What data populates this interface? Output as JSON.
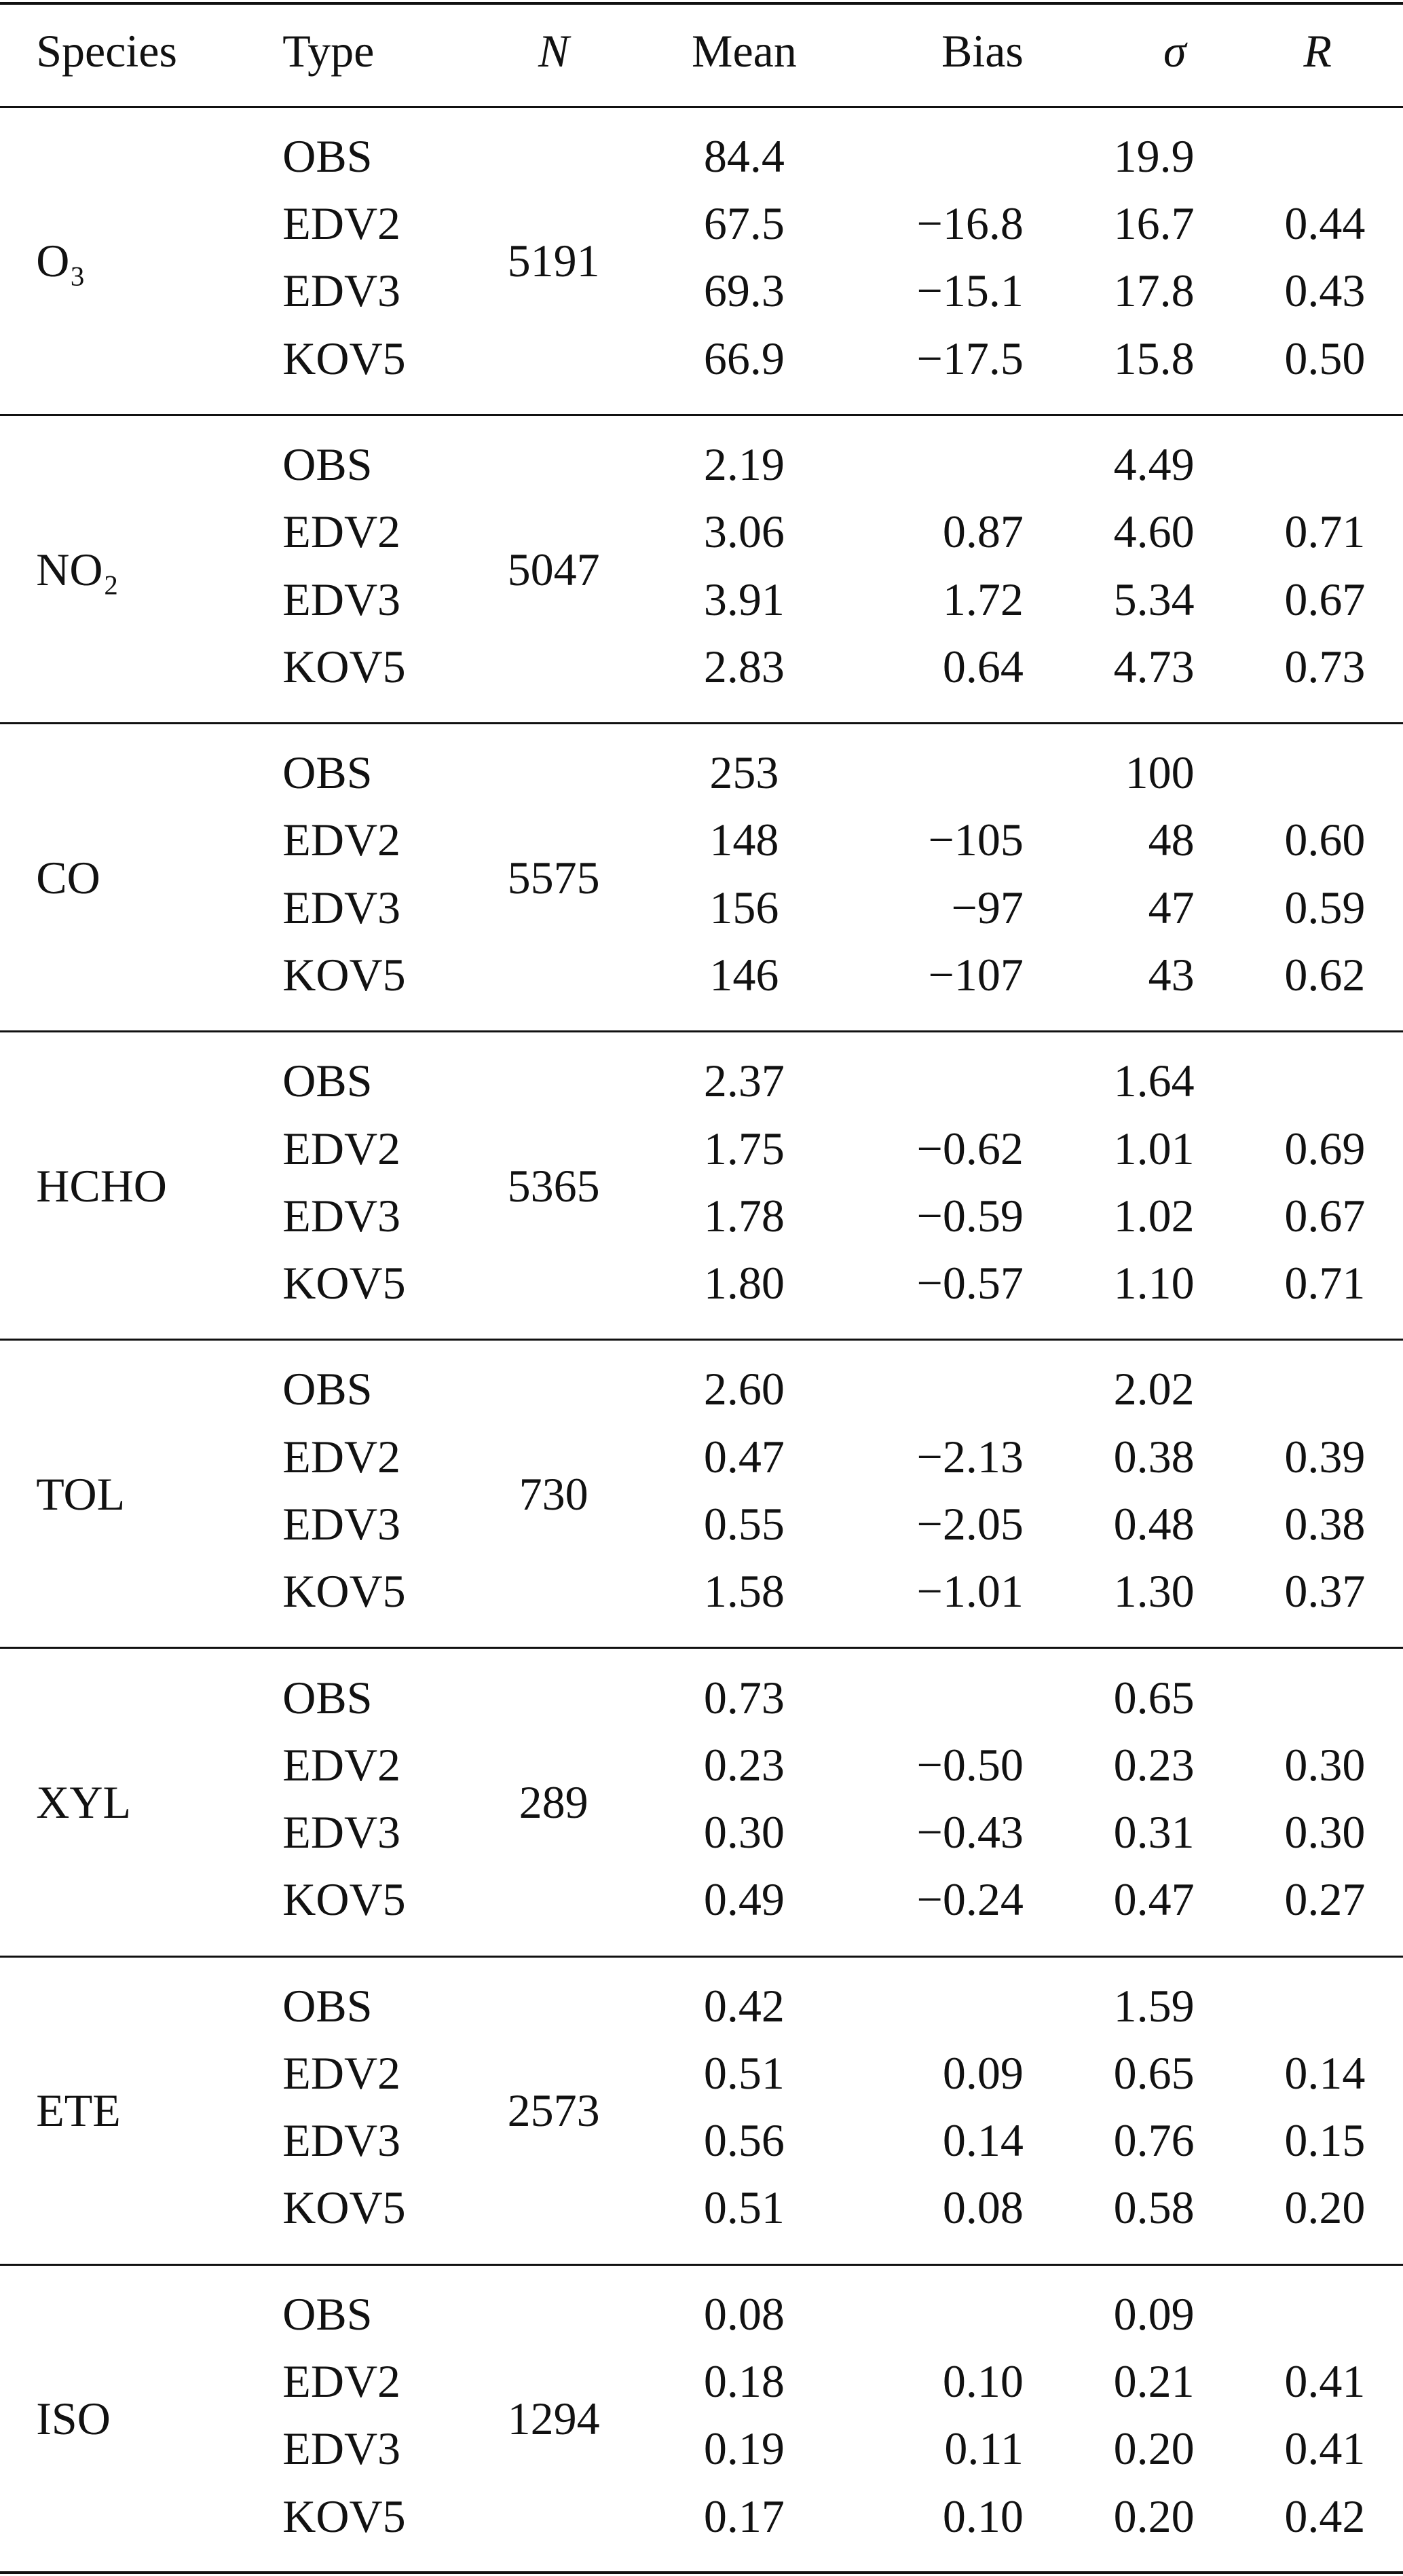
{
  "table": {
    "header": [
      "Species",
      "Type",
      "N",
      "Mean",
      "Bias",
      "σ",
      "R"
    ],
    "groups": [
      {
        "species": "O₃",
        "n": "5191",
        "rows": [
          [
            "OBS",
            "84.4",
            null,
            "19.9",
            null
          ],
          [
            "EDV2",
            "67.5",
            "−16.8",
            "16.7",
            "0.44"
          ],
          [
            "EDV3",
            "69.3",
            "−15.1",
            "17.8",
            "0.43"
          ],
          [
            "KOV5",
            "66.9",
            "−17.5",
            "15.8",
            "0.50"
          ]
        ]
      },
      {
        "species": "NO₂",
        "n": "5047",
        "rows": [
          [
            "OBS",
            "2.19",
            null,
            "4.49",
            null
          ],
          [
            "EDV2",
            "3.06",
            "0.87",
            "4.60",
            "0.71"
          ],
          [
            "EDV3",
            "3.91",
            "1.72",
            "5.34",
            "0.67"
          ],
          [
            "KOV5",
            "2.83",
            "0.64",
            "4.73",
            "0.73"
          ]
        ]
      },
      {
        "species": "CO",
        "n": "5575",
        "rows": [
          [
            "OBS",
            "253",
            null,
            "100",
            null
          ],
          [
            "EDV2",
            "148",
            "−105",
            "48",
            "0.60"
          ],
          [
            "EDV3",
            "156",
            "−97",
            "47",
            "0.59"
          ],
          [
            "KOV5",
            "146",
            "−107",
            "43",
            "0.62"
          ]
        ]
      },
      {
        "species": "HCHO",
        "n": "5365",
        "rows": [
          [
            "OBS",
            "2.37",
            null,
            "1.64",
            null
          ],
          [
            "EDV2",
            "1.75",
            "−0.62",
            "1.01",
            "0.69"
          ],
          [
            "EDV3",
            "1.78",
            "−0.59",
            "1.02",
            "0.67"
          ],
          [
            "KOV5",
            "1.80",
            "−0.57",
            "1.10",
            "0.71"
          ]
        ]
      },
      {
        "species": "TOL",
        "n": "730",
        "rows": [
          [
            "OBS",
            "2.60",
            null,
            "2.02",
            null
          ],
          [
            "EDV2",
            "0.47",
            "−2.13",
            "0.38",
            "0.39"
          ],
          [
            "EDV3",
            "0.55",
            "−2.05",
            "0.48",
            "0.38"
          ],
          [
            "KOV5",
            "1.58",
            "−1.01",
            "1.30",
            "0.37"
          ]
        ]
      },
      {
        "species": "XYL",
        "n": "289",
        "rows": [
          [
            "OBS",
            "0.73",
            null,
            "0.65",
            null
          ],
          [
            "EDV2",
            "0.23",
            "−0.50",
            "0.23",
            "0.30"
          ],
          [
            "EDV3",
            "0.30",
            "−0.43",
            "0.31",
            "0.30"
          ],
          [
            "KOV5",
            "0.49",
            "−0.24",
            "0.47",
            "0.27"
          ]
        ]
      },
      {
        "species": "ETE",
        "n": "2573",
        "rows": [
          [
            "OBS",
            "0.42",
            null,
            "1.59",
            null
          ],
          [
            "EDV2",
            "0.51",
            "0.09",
            "0.65",
            "0.14"
          ],
          [
            "EDV3",
            "0.56",
            "0.14",
            "0.76",
            "0.15"
          ],
          [
            "KOV5",
            "0.51",
            "0.08",
            "0.58",
            "0.20"
          ]
        ]
      },
      {
        "species": "ISO",
        "n": "1294",
        "rows": [
          [
            "OBS",
            "0.08",
            null,
            "0.09",
            null
          ],
          [
            "EDV2",
            "0.18",
            "0.10",
            "0.21",
            "0.41"
          ],
          [
            "EDV3",
            "0.19",
            "0.11",
            "0.20",
            "0.41"
          ],
          [
            "KOV5",
            "0.17",
            "0.10",
            "0.20",
            "0.42"
          ]
        ]
      }
    ]
  }
}
